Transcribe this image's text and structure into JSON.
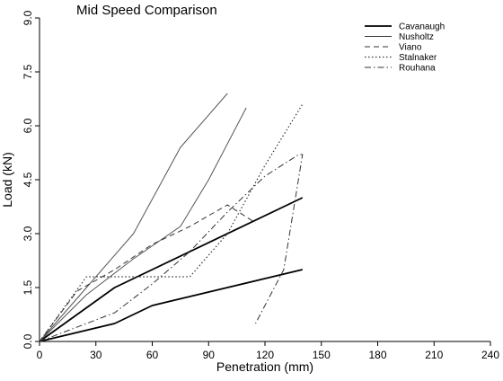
{
  "chart_data": {
    "type": "line",
    "title": "Mid Speed Comparison",
    "xlabel": "Penetration (mm)",
    "ylabel": "Load (kN)",
    "xlim": [
      0,
      240
    ],
    "ylim": [
      0,
      9
    ],
    "xticks": [
      0,
      30,
      60,
      90,
      120,
      150,
      180,
      210,
      240
    ],
    "yticks": [
      0.0,
      1.5,
      3.0,
      4.5,
      6.0,
      7.5,
      9.0
    ],
    "xtick_labels": [
      "0",
      "30",
      "60",
      "90",
      "120",
      "150",
      "180",
      "210",
      "240"
    ],
    "ytick_labels": [
      "0.0",
      "1.5",
      "3.0",
      "4.5",
      "6.0",
      "7.5",
      "9.0"
    ],
    "grid": false,
    "legend_position": "top-right",
    "series": [
      {
        "name": "Cavanaugh",
        "style": "solid-thick",
        "color": "#000000",
        "x": [
          0,
          40,
          140
        ],
        "y": [
          0,
          1.5,
          4.0
        ]
      },
      {
        "name": "Cavanaugh",
        "style": "solid-thick",
        "color": "#000000",
        "x": [
          0,
          20,
          40,
          60,
          80,
          100,
          120,
          140
        ],
        "y": [
          0,
          0.25,
          0.5,
          1.0,
          1.25,
          1.5,
          1.75,
          2.0
        ]
      },
      {
        "name": "Nusholtz",
        "style": "solid-thin",
        "color": "#555555",
        "x": [
          0,
          25,
          50,
          75,
          100
        ],
        "y": [
          0,
          1.5,
          3.0,
          5.4,
          6.9
        ]
      },
      {
        "name": "Nusholtz",
        "style": "solid-thin",
        "color": "#555555",
        "x": [
          0,
          25,
          50,
          75,
          90,
          110
        ],
        "y": [
          0,
          1.3,
          2.3,
          3.2,
          4.5,
          6.5
        ]
      },
      {
        "name": "Viano",
        "style": "dashed",
        "color": "#333333",
        "x": [
          0,
          20,
          40,
          60,
          80,
          100,
          115
        ],
        "y": [
          0,
          1.4,
          2.0,
          2.7,
          3.2,
          3.8,
          3.3
        ]
      },
      {
        "name": "Stalnaker",
        "style": "dotted",
        "color": "#333333",
        "x": [
          0,
          25,
          50,
          70,
          80,
          100,
          120,
          140
        ],
        "y": [
          0,
          1.8,
          1.8,
          1.8,
          1.8,
          3.0,
          4.9,
          6.6
        ]
      },
      {
        "name": "Rouhana",
        "style": "dashdot",
        "color": "#333333",
        "x": [
          0,
          40,
          60,
          80,
          100,
          120,
          138,
          140,
          130,
          115
        ],
        "y": [
          0,
          0.8,
          1.6,
          2.5,
          3.6,
          4.6,
          5.2,
          5.2,
          2.0,
          0.5
        ]
      }
    ],
    "legend": [
      {
        "name": "Cavanaugh",
        "style": "solid-thick"
      },
      {
        "name": "Nusholtz",
        "style": "solid-thin"
      },
      {
        "name": "Viano",
        "style": "dashed"
      },
      {
        "name": "Stalnaker",
        "style": "dotted"
      },
      {
        "name": "Rouhana",
        "style": "dashdot"
      }
    ]
  }
}
